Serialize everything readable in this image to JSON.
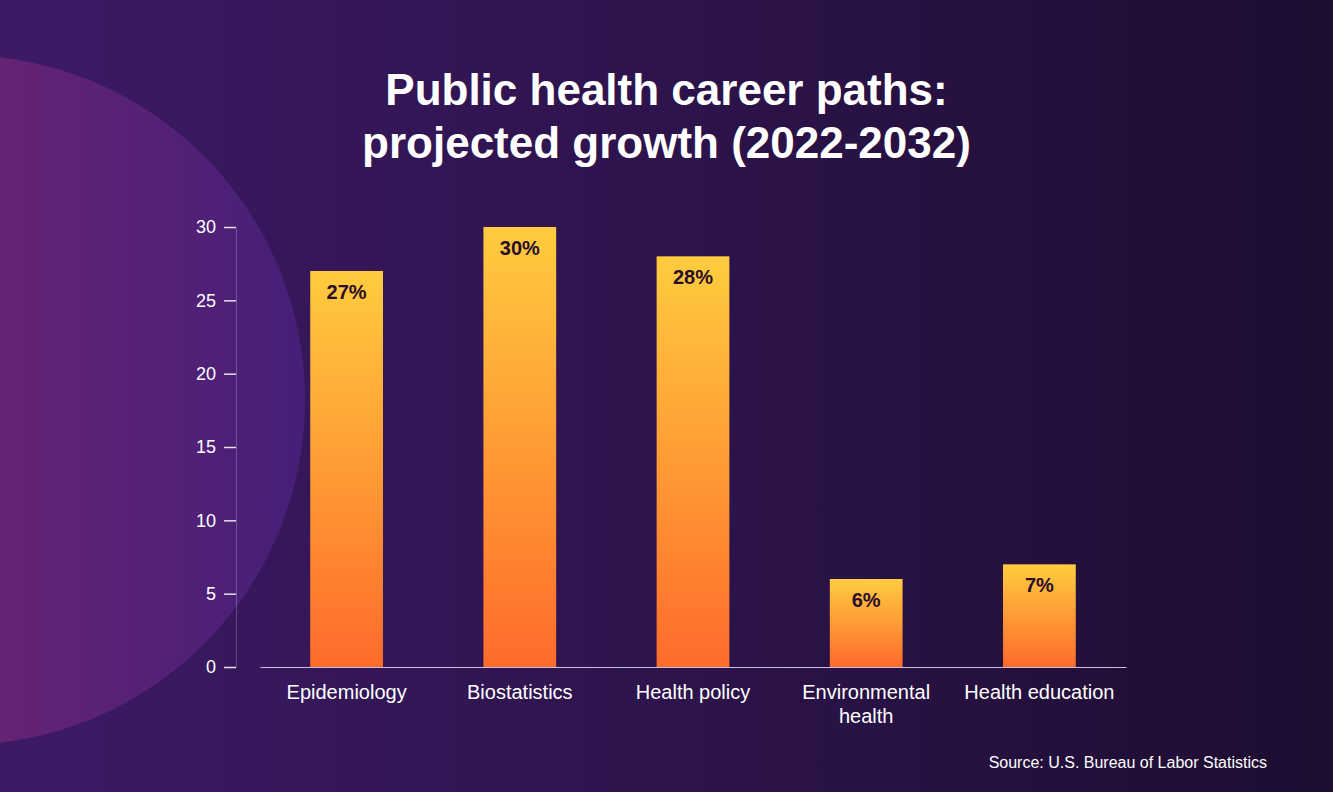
{
  "chart_data": {
    "type": "bar",
    "title": "Public health career paths: projected growth (2022-2032)",
    "categories": [
      "Epidemiology",
      "Biostatistics",
      "Health policy",
      "Environmental health",
      "Health education"
    ],
    "values": [
      27,
      30,
      28,
      6,
      7
    ],
    "value_labels": [
      "27%",
      "30%",
      "28%",
      "6%",
      "7%"
    ],
    "data_labels": true,
    "ylim": [
      0,
      30
    ],
    "yticks": [
      0,
      5,
      10,
      15,
      20,
      25,
      30
    ],
    "grid": false,
    "source": "Source: U.S. Bureau of Labor Statistics"
  }
}
